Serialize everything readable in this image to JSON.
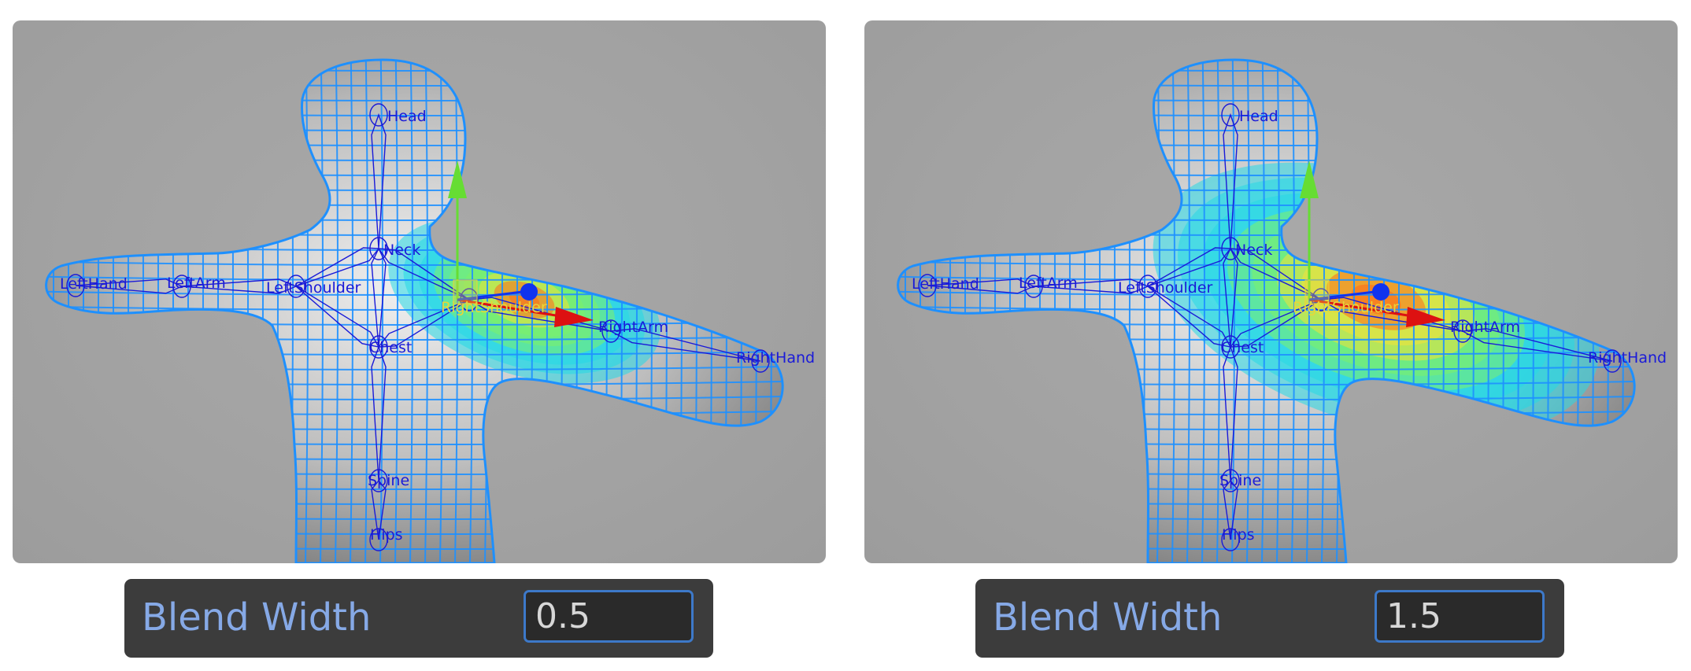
{
  "panels": [
    {
      "label": "Blend Width",
      "value": "0.5"
    },
    {
      "label": "Blend Width",
      "value": "1.5"
    }
  ],
  "bones": {
    "head": "Head",
    "neck": "Neck",
    "left_hand": "LeftHand",
    "left_arm": "LeftArm",
    "left_shoulder": "LeftShoulder",
    "right_shoulder": "RightShoulder",
    "right_arm": "RightArm",
    "right_hand": "RightHand",
    "chest": "Chest",
    "spine": "Spine",
    "hips": "Hips"
  },
  "colors": {
    "viewport_bg": "#a2a2a2",
    "mesh_wire": "#1e90ff",
    "bone": "#1a1ad8",
    "selected_bone": "#e8d53a",
    "gizmo_y": "#66dd33",
    "gizmo_x": "#dd1111",
    "gizmo_z": "#1133ee",
    "panel_bg": "#3c3c3c",
    "panel_label": "#86a9e6",
    "field_border": "#3d79c9"
  },
  "weight_spread": [
    0.5,
    1.5
  ]
}
